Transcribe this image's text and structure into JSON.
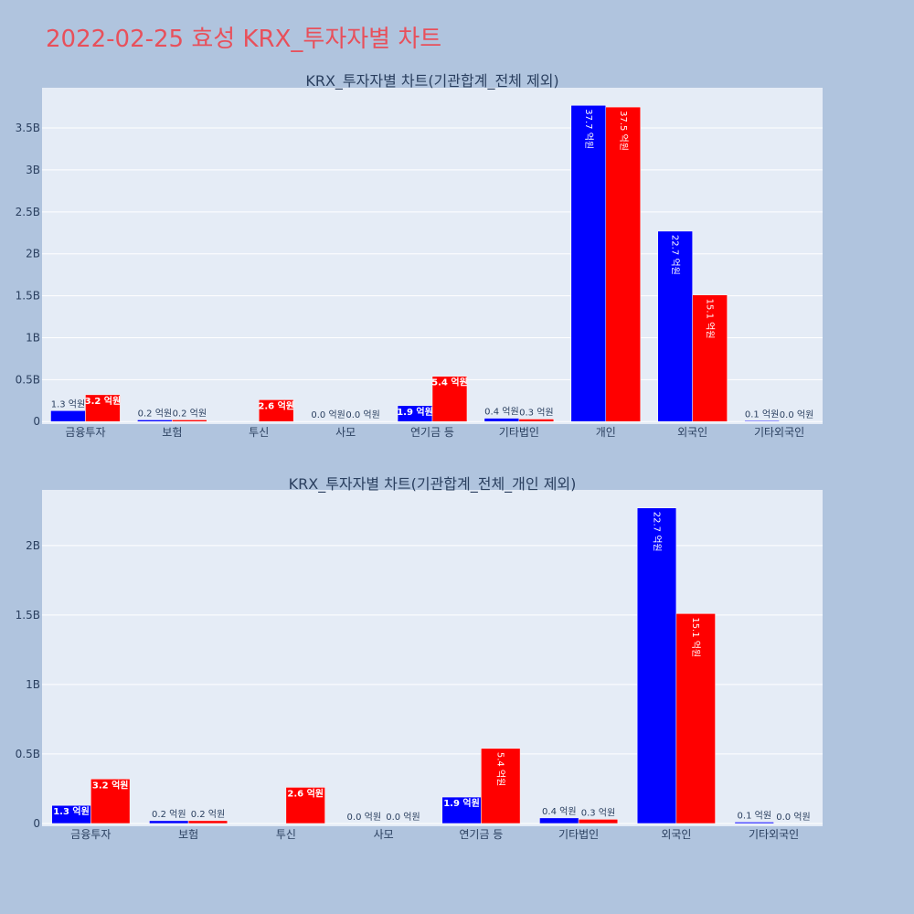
{
  "page": {
    "title": "2022-02-25 효성 KRX_투자자별 차트"
  },
  "colors": {
    "buy": "#0000ff",
    "sell": "#ff0000",
    "plot_bg": "#e5ecf6",
    "paper_bg": "#b0c4de"
  },
  "chart_data": [
    {
      "type": "bar",
      "title": "KRX_투자자별 차트(기관합계_전체 제외)",
      "categories": [
        "금융투자",
        "보험",
        "투신",
        "사모",
        "연기금 등",
        "기타법인",
        "개인",
        "외국인",
        "기타외국인"
      ],
      "series": [
        {
          "values": [
            0.13,
            0.02,
            0.0,
            0.0,
            0.19,
            0.04,
            3.77,
            2.27,
            0.01
          ],
          "labels": [
            "1.3 억원",
            "0.2 억원",
            "",
            "0.0 억원",
            "1.9 억원",
            "0.4 억원",
            "37.7 억원",
            "22.7 억원",
            "0.1 억원"
          ]
        },
        {
          "values": [
            0.32,
            0.02,
            0.26,
            0.0,
            0.54,
            0.03,
            3.75,
            1.51,
            0.0
          ],
          "labels": [
            "3.2 억원",
            "0.2 억원",
            "2.6 억원",
            "0.0 억원",
            "5.4 억원",
            "0.3 억원",
            "37.5 억원",
            "15.1 억원",
            "0.0 억원"
          ]
        }
      ],
      "ylim": [
        -0.03,
        3.98
      ],
      "yticks": [
        0,
        0.5,
        1,
        1.5,
        2,
        2.5,
        3,
        3.5
      ],
      "ytick_labels": [
        "0",
        "0.5B",
        "1B",
        "1.5B",
        "2B",
        "2.5B",
        "3B",
        "3.5B"
      ],
      "grid": true,
      "legend": "none"
    },
    {
      "type": "bar",
      "title": "KRX_투자자별 차트(기관합계_전체_개인 제외)",
      "categories": [
        "금융투자",
        "보험",
        "투신",
        "사모",
        "연기금 등",
        "기타법인",
        "외국인",
        "기타외국인"
      ],
      "series": [
        {
          "values": [
            0.13,
            0.02,
            0.0,
            0.0,
            0.19,
            0.04,
            2.27,
            0.01
          ],
          "labels": [
            "1.3 억원",
            "0.2 억원",
            "",
            "0.0 억원",
            "1.9 억원",
            "0.4 억원",
            "22.7 억원",
            "0.1 억원"
          ]
        },
        {
          "values": [
            0.32,
            0.02,
            0.26,
            0.0,
            0.54,
            0.03,
            1.51,
            0.0
          ],
          "labels": [
            "3.2 억원",
            "0.2 억원",
            "2.6 억원",
            "0.0 억원",
            "5.4 억원",
            "0.3 억원",
            "15.1 억원",
            "0.0 억원"
          ]
        }
      ],
      "ylim": [
        -0.02,
        2.4
      ],
      "yticks": [
        0,
        0.5,
        1,
        1.5,
        2
      ],
      "ytick_labels": [
        "0",
        "0.5B",
        "1B",
        "1.5B",
        "2B"
      ],
      "grid": true,
      "legend": "none"
    }
  ]
}
